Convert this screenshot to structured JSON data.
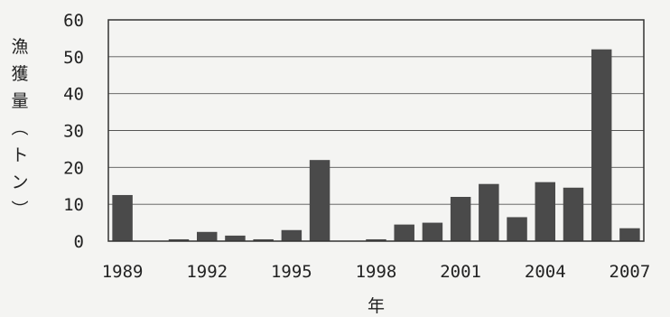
{
  "chart_data": {
    "type": "bar",
    "title": "",
    "xlabel": "年",
    "ylabel": "漁獲量（トン）",
    "x": [
      1989,
      1990,
      1991,
      1992,
      1993,
      1994,
      1995,
      1996,
      1997,
      1998,
      1999,
      2000,
      2001,
      2002,
      2003,
      2004,
      2005,
      2006,
      2007
    ],
    "values": [
      12.5,
      0,
      0.5,
      2.5,
      1.5,
      0.5,
      3,
      22,
      0,
      0.5,
      4.5,
      5,
      12,
      15.5,
      6.5,
      16,
      14.5,
      52,
      3.5
    ],
    "x_tick_labels": [
      "1989",
      "1992",
      "1995",
      "1998",
      "2001",
      "2004",
      "2007"
    ],
    "y_tick_labels": [
      "0",
      "10",
      "20",
      "30",
      "40",
      "50",
      "60"
    ],
    "ylim": [
      0,
      60
    ],
    "grid": true,
    "bar_color": "#4a4a4a"
  }
}
